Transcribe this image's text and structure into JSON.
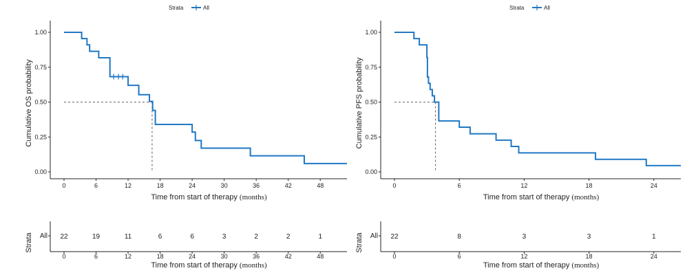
{
  "chart_data": [
    {
      "type": "line",
      "panel": "left",
      "legend": {
        "title": "Strata",
        "entries": [
          "All"
        ],
        "position": "top"
      },
      "ylabel": "Cumulative OS probability",
      "xlabel": "Time from start of therapy",
      "xlabel_unit": "(months)",
      "xlim": [
        0,
        53
      ],
      "ylim": [
        0,
        1
      ],
      "x_ticks": [
        0,
        6,
        12,
        18,
        24,
        30,
        36,
        42,
        48
      ],
      "y_ticks": [
        "0.00",
        "0.25",
        "0.50",
        "0.75",
        "1.00"
      ],
      "grid": false,
      "series": [
        {
          "name": "All",
          "color": "#1f77c4",
          "step_x": [
            0,
            3.3,
            4.3,
            4.8,
            6.5,
            8.6,
            9,
            12,
            14,
            16,
            16.6,
            17.1,
            24,
            24.6,
            25.7,
            34.9,
            45,
            53
          ],
          "step_y": [
            1.0,
            0.955,
            0.91,
            0.864,
            0.818,
            0.682,
            0.682,
            0.62,
            0.553,
            0.505,
            0.44,
            0.34,
            0.285,
            0.225,
            0.17,
            0.115,
            0.06,
            0.06
          ],
          "censor_x": [
            9.3,
            10.2,
            11.0
          ],
          "censor_y": [
            0.682,
            0.682,
            0.682
          ]
        }
      ],
      "median_x": 16.5,
      "risk_table": {
        "ylabel": "Strata",
        "row_label": "All",
        "x": [
          0,
          6,
          12,
          18,
          24,
          30,
          36,
          42,
          48
        ],
        "counts": [
          22,
          19,
          11,
          6,
          6,
          3,
          2,
          2,
          1
        ],
        "xlabel": "Time from start of therapy",
        "xlabel_unit": "(months)"
      }
    },
    {
      "type": "line",
      "panel": "right",
      "legend": {
        "title": "Strata",
        "entries": [
          "All"
        ],
        "position": "top"
      },
      "ylabel": "Cumulative PFS probability",
      "xlabel": "Time from start of therapy",
      "xlabel_unit": "(months)",
      "xlim": [
        0,
        26.5
      ],
      "ylim": [
        0,
        1
      ],
      "x_ticks": [
        0,
        6,
        12,
        18,
        24
      ],
      "y_ticks": [
        "0.00",
        "0.25",
        "0.50",
        "0.75",
        "1.00"
      ],
      "grid": false,
      "series": [
        {
          "name": "All",
          "color": "#1f77c4",
          "step_x": [
            0,
            1.8,
            2.3,
            3,
            3.05,
            3.15,
            3.3,
            3.5,
            3.7,
            4.1,
            6,
            7,
            9.4,
            10.8,
            11.5,
            18.6,
            23.3,
            26.5
          ],
          "step_y": [
            1.0,
            0.955,
            0.91,
            0.82,
            0.68,
            0.635,
            0.59,
            0.545,
            0.5,
            0.365,
            0.32,
            0.273,
            0.227,
            0.182,
            0.136,
            0.09,
            0.045,
            0.045
          ],
          "censor_x": [],
          "censor_y": []
        }
      ],
      "median_x": 3.8,
      "risk_table": {
        "ylabel": "Strata",
        "row_label": "All",
        "x": [
          0,
          6,
          12,
          18,
          24
        ],
        "counts": [
          22,
          8,
          3,
          3,
          1
        ],
        "xlabel": "Time from start of therapy",
        "xlabel_unit": "(months)"
      }
    }
  ]
}
